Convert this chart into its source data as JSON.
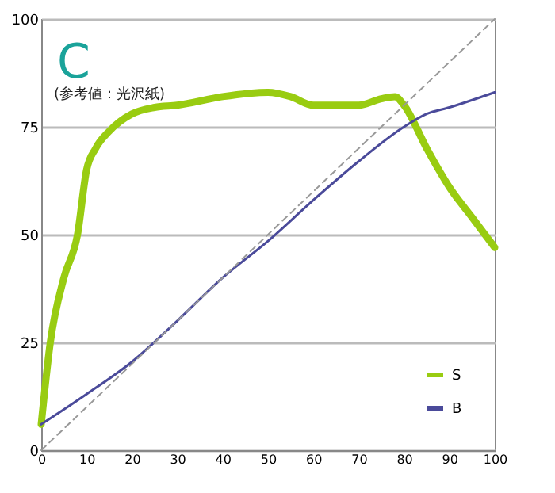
{
  "chart_data": {
    "type": "line",
    "title": "C",
    "annotations": [
      "(参考値：光沢紙)"
    ],
    "xlim": [
      0,
      100
    ],
    "xticks": [
      0,
      10,
      20,
      30,
      40,
      50,
      60,
      70,
      80,
      90,
      100
    ],
    "ylim": [
      0,
      100
    ],
    "yticks": [
      0,
      25,
      50,
      75,
      100
    ],
    "grid": "y",
    "legend": "bottom right",
    "series": [
      {
        "name": "S",
        "color": "#99cc11",
        "x": [
          0,
          2,
          5,
          8,
          10,
          12,
          15,
          20,
          25,
          30,
          40,
          50,
          55,
          60,
          70,
          75,
          78,
          80,
          85,
          90,
          95,
          100
        ],
        "values": [
          6,
          25,
          40,
          50,
          65,
          70,
          74,
          78,
          79.5,
          80,
          82,
          83,
          82,
          80,
          80,
          81.5,
          82,
          80,
          70,
          61,
          54,
          47
        ]
      },
      {
        "name": "B",
        "color": "#4a4a9a",
        "x": [
          0,
          10,
          20,
          30,
          40,
          50,
          60,
          70,
          80,
          85,
          90,
          100
        ],
        "values": [
          6,
          13,
          20.5,
          30,
          40,
          48.5,
          58,
          67,
          75,
          78,
          79.5,
          83
        ]
      },
      {
        "type": "line",
        "color": "#999999",
        "line_style": "dashed",
        "x": [
          0,
          100
        ],
        "values": [
          0,
          100
        ]
      }
    ]
  }
}
